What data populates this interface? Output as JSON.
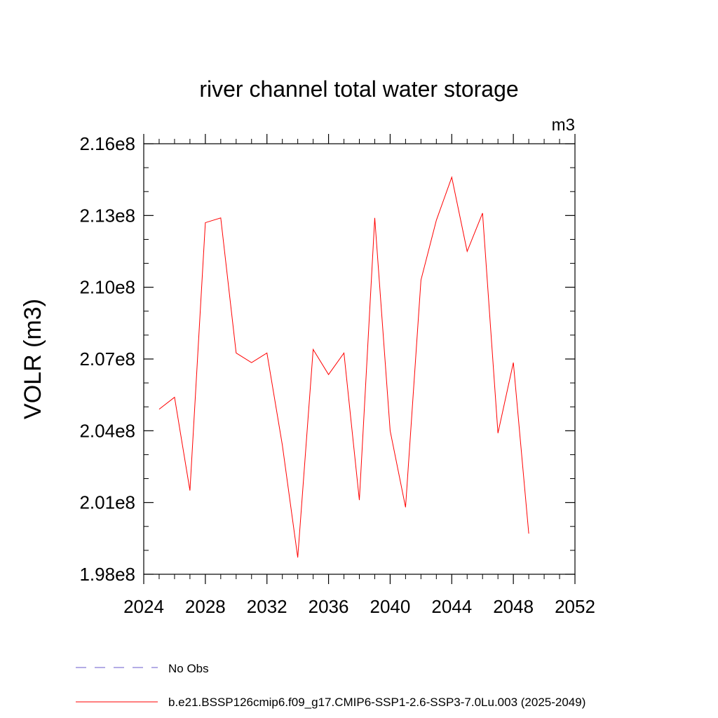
{
  "chart_data": {
    "type": "line",
    "title": "river channel total water storage",
    "units_label": "m3",
    "ylabel": "VOLR  (m3)",
    "xlabel": "",
    "xlim": [
      2024,
      2052
    ],
    "ylim": [
      198000000,
      216000000
    ],
    "x_ticks": [
      2024,
      2028,
      2032,
      2036,
      2040,
      2044,
      2048,
      2052
    ],
    "x_tick_labels": [
      "2024",
      "2028",
      "2032",
      "2036",
      "2040",
      "2044",
      "2048",
      "2052"
    ],
    "y_ticks": [
      198000000,
      201000000,
      204000000,
      207000000,
      210000000,
      213000000,
      216000000
    ],
    "y_tick_labels": [
      "1.98e8",
      "2.01e8",
      "2.04e8",
      "2.07e8",
      "2.10e8",
      "2.13e8",
      "2.16e8"
    ],
    "grid": false,
    "legend_position": "bottom",
    "series": [
      {
        "name": "No Obs",
        "color": "#6a5acd",
        "dash": "dashed",
        "x": [],
        "y": []
      },
      {
        "name": "b.e21.BSSP126cmip6.f09_g17.CMIP6-SSP1-2.6-SSP3-7.0Lu.003 (2025-2049)",
        "color": "#ff0000",
        "dash": "solid",
        "x": [
          2025,
          2026,
          2027,
          2028,
          2029,
          2030,
          2031,
          2032,
          2033,
          2034,
          2035,
          2036,
          2037,
          2038,
          2039,
          2040,
          2041,
          2042,
          2043,
          2044,
          2045,
          2046,
          2047,
          2048,
          2049
        ],
        "y": [
          204900000,
          205400000,
          201500000,
          212700000,
          212900000,
          207250000,
          206850000,
          207250000,
          203400000,
          198700000,
          207400000,
          206350000,
          207250000,
          201100000,
          212900000,
          204000000,
          200800000,
          210300000,
          212800000,
          214600000,
          211500000,
          213100000,
          203900000,
          206850000,
          199700000
        ]
      }
    ]
  }
}
